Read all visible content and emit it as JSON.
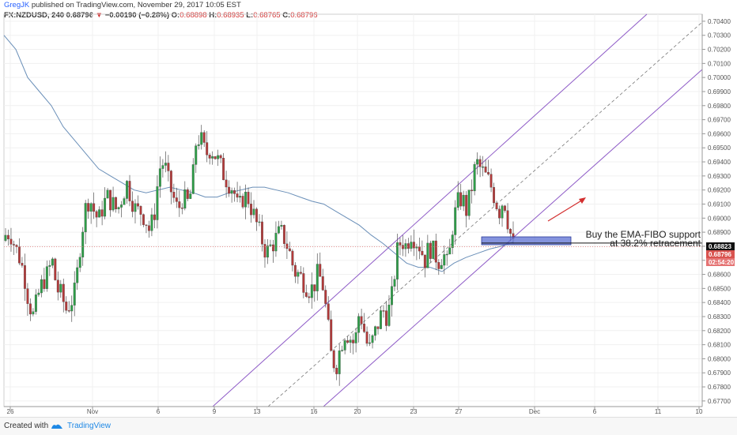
{
  "header": {
    "author": "GregJK",
    "published": " published on TradingView.com, November 29, 2017 10:05 EST",
    "symbol": "FX:NZDUSD, 240",
    "last": "0.68796",
    "arrow": "▼",
    "change": "−0.00190 (−0.28%)",
    "o_label": "O:",
    "o": "0.68898",
    "h_label": "H:",
    "h": "0.68935",
    "l_label": "L:",
    "l": "0.68765",
    "c_label": "C:",
    "c": "0.68796"
  },
  "footer": {
    "created": "Created with",
    "brand": "TradingView"
  },
  "annotation": {
    "line1": "Buy the EMA-FIBO support",
    "line2": "at 38.2% retracement"
  },
  "price_tags": {
    "fibo": "0.68823",
    "last": "0.68796",
    "timer": "02:54:20"
  },
  "colors": {
    "up": "#2e9e48",
    "down": "#b33a3a",
    "ema": "#6a8fb8",
    "channel": "#8e5bc7",
    "arrow": "#d32f2f",
    "zone": "#5b6fd1"
  },
  "chart_data": {
    "type": "candlestick",
    "symbol": "FX:NZDUSD",
    "interval": "240",
    "ylim": [
      0.6766,
      0.7045
    ],
    "y_ticks": [
      "0.70400",
      "0.70300",
      "0.70200",
      "0.70100",
      "0.70000",
      "0.69900",
      "0.69800",
      "0.69700",
      "0.69600",
      "0.69500",
      "0.69400",
      "0.69300",
      "0.69200",
      "0.69100",
      "0.69000",
      "0.68900",
      "0.68800",
      "0.68700",
      "0.68600",
      "0.68500",
      "0.68400",
      "0.68300",
      "0.68200",
      "0.68100",
      "0.68000",
      "0.67900",
      "0.67800",
      "0.67700"
    ],
    "x_ticks": [
      "26",
      "Nov",
      "6",
      "9",
      "13",
      "16",
      "20",
      "23",
      "27",
      "Dec",
      "6",
      "11",
      "10"
    ],
    "close_path": [
      0.6888,
      0.689,
      0.688,
      0.6872,
      0.686,
      0.684,
      0.683,
      0.6845,
      0.6855,
      0.686,
      0.687,
      0.685,
      0.6845,
      0.6835,
      0.684,
      0.6848,
      0.688,
      0.6905,
      0.6915,
      0.6905,
      0.6898,
      0.691,
      0.6915,
      0.691,
      0.6905,
      0.6915,
      0.6925,
      0.6915,
      0.6905,
      0.6905,
      0.69,
      0.689,
      0.6905,
      0.6935,
      0.694,
      0.6925,
      0.6915,
      0.6905,
      0.6915,
      0.691,
      0.692,
      0.6958,
      0.6955,
      0.6945,
      0.695,
      0.6945,
      0.6938,
      0.693,
      0.6925,
      0.692,
      0.6905,
      0.6915,
      0.6915,
      0.6905,
      0.6895,
      0.6885,
      0.6875,
      0.688,
      0.6885,
      0.689,
      0.6885,
      0.6875,
      0.6862,
      0.686,
      0.6855,
      0.685,
      0.685,
      0.686,
      0.6855,
      0.683,
      0.68,
      0.6795,
      0.681,
      0.682,
      0.6815,
      0.681,
      0.6835,
      0.682,
      0.6805,
      0.6815,
      0.6825,
      0.6835,
      0.683,
      0.6845,
      0.6875,
      0.6885,
      0.688,
      0.689,
      0.6885,
      0.688,
      0.687,
      0.688,
      0.6875,
      0.687,
      0.6875,
      0.6865,
      0.6895,
      0.691,
      0.6915,
      0.6905,
      0.692,
      0.694,
      0.6935,
      0.693,
      0.6925,
      0.6915,
      0.6905,
      0.6915,
      0.6895,
      0.688
    ],
    "ema_path": [
      0.703,
      0.702,
      0.7,
      0.699,
      0.698,
      0.6965,
      0.6955,
      0.6945,
      0.6935,
      0.693,
      0.6925,
      0.692,
      0.6918,
      0.692,
      0.6922,
      0.692,
      0.6918,
      0.6915,
      0.6915,
      0.6918,
      0.692,
      0.6922,
      0.6922,
      0.692,
      0.6918,
      0.6915,
      0.6912,
      0.691,
      0.6905,
      0.69,
      0.6895,
      0.6888,
      0.6882,
      0.6875,
      0.6868,
      0.6865,
      0.6865,
      0.6862,
      0.6868,
      0.6872,
      0.6875,
      0.6878,
      0.688,
      0.6883
    ],
    "channel": {
      "lower": [
        [
          0.677,
          0.699
        ],
        [
          0.677,
          0.7
        ]
      ],
      "note": "parallel ascending channel with dashed mid line"
    },
    "levels": {
      "fibo_support": 0.68823,
      "last_price": 0.68796
    }
  }
}
